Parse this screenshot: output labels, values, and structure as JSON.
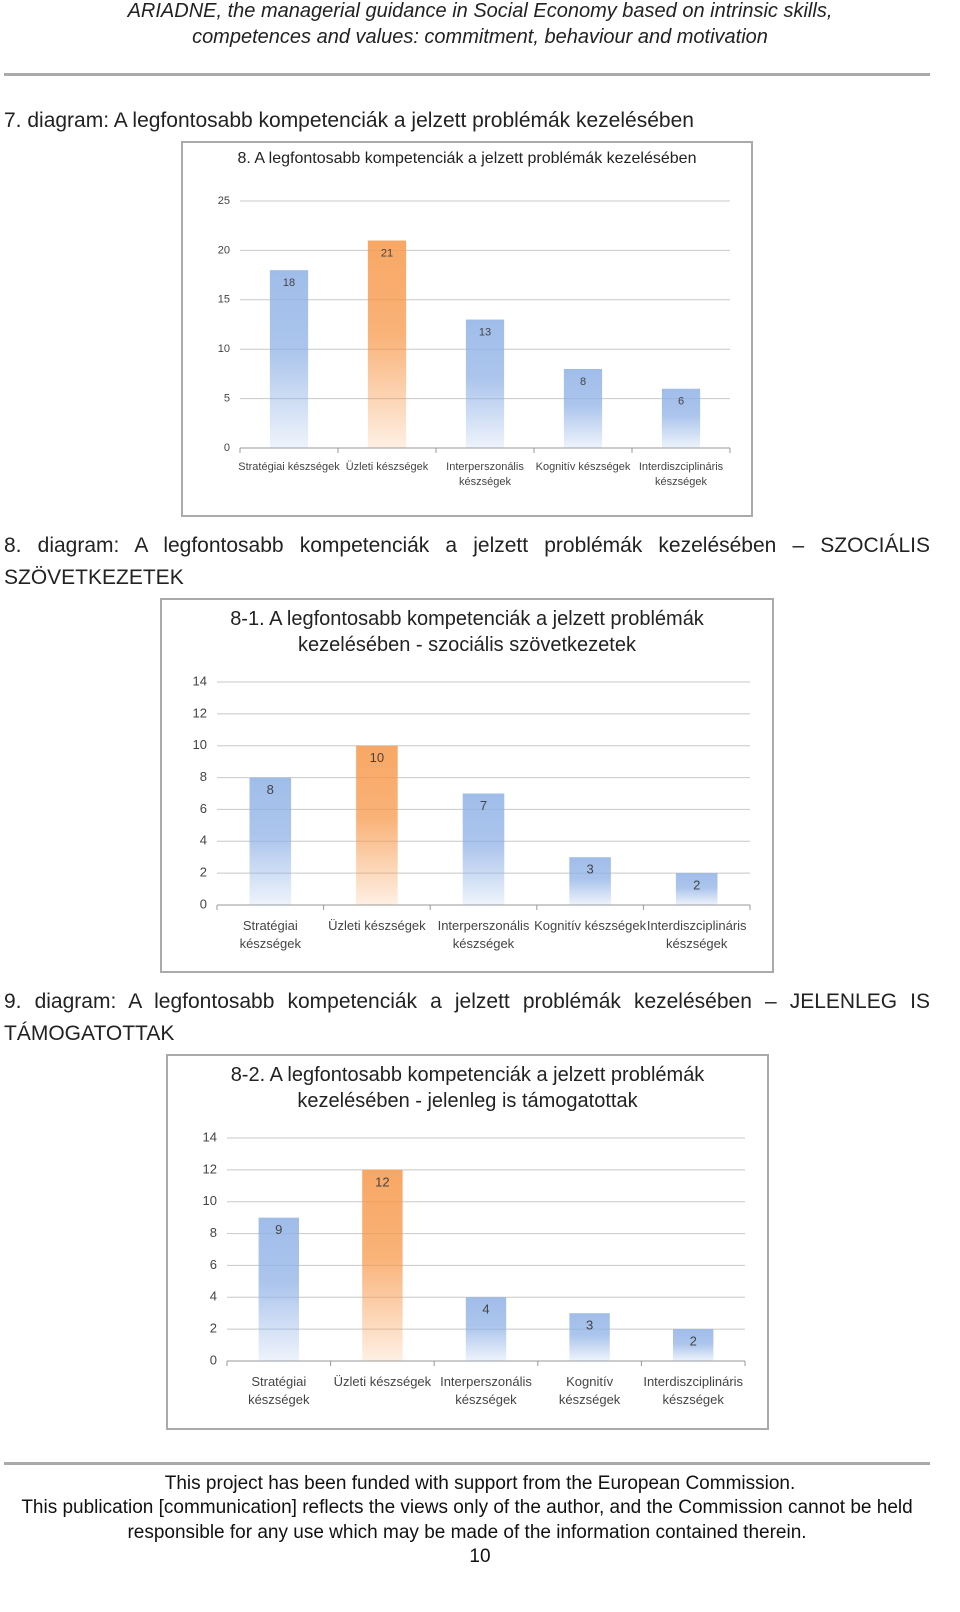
{
  "header": {
    "lines": [
      "ARIADNE, the managerial guidance in Social Economy based on intrinsic skills,",
      "competences and values: commitment, behaviour and motivation"
    ]
  },
  "captions": [
    "7. diagram: A legfontosabb kompetenciák a jelzett problémák kezelésében",
    "8. diagram: A legfontosabb kompetenciák a jelzett problémák kezelésében – SZOCIÁLIS SZÖVETKEZETEK",
    "9. diagram: A legfontosabb kompetenciák a jelzett problémák kezelésében – JELENLEG IS TÁMOGATOTTAK"
  ],
  "chart_data": [
    {
      "type": "bar",
      "title": "8. A legfontosabb kompetenciák a jelzett problémák kezelésében",
      "categories": [
        "Stratégiai készségek",
        "Üzleti készségek",
        "Interperszonális készségek",
        "Kognitív készségek",
        "Interdiszciplináris készségek"
      ],
      "values": [
        18,
        21,
        13,
        8,
        6
      ],
      "colors": [
        "#8fb1e6",
        "#f7984a",
        "#8fb1e6",
        "#8fb1e6",
        "#8fb1e6"
      ],
      "ylim": [
        0,
        25
      ],
      "yticks": [
        0,
        5,
        10,
        15,
        20,
        25
      ],
      "grid": true
    },
    {
      "type": "bar",
      "title": "8-1. A legfontosabb kompetenciák a jelzett problémák kezelésében - szociális szövetkezetek",
      "categories": [
        "Stratégiai készségek",
        "Üzleti készségek",
        "Interperszonális készségek",
        "Kognitív készségek",
        "Interdiszciplináris készségek"
      ],
      "values": [
        8,
        10,
        7,
        3,
        2
      ],
      "colors": [
        "#8fb1e6",
        "#f7984a",
        "#8fb1e6",
        "#8fb1e6",
        "#8fb1e6"
      ],
      "ylim": [
        0,
        14
      ],
      "yticks": [
        0,
        2,
        4,
        6,
        8,
        10,
        12,
        14
      ],
      "grid": true
    },
    {
      "type": "bar",
      "title": "8-2. A legfontosabb kompetenciák a jelzett problémák kezelésében - jelenleg is támogatottak",
      "categories": [
        "Stratégiai készségek",
        "Üzleti készségek",
        "Interperszonális készségek",
        "Kognitív készségek",
        "Interdiszciplináris készségek"
      ],
      "values": [
        9,
        12,
        4,
        3,
        2
      ],
      "colors": [
        "#8fb1e6",
        "#f7984a",
        "#8fb1e6",
        "#8fb1e6",
        "#8fb1e6"
      ],
      "ylim": [
        0,
        14
      ],
      "yticks": [
        0,
        2,
        4,
        6,
        8,
        10,
        12,
        14
      ],
      "grid": true
    }
  ],
  "footer": {
    "lines": [
      "This project has been funded with support from the European Commission.",
      "This publication [communication] reflects the views only of the author, and the Commission cannot be held responsible for any use which may be made of the information contained therein."
    ],
    "page_number": 10
  }
}
